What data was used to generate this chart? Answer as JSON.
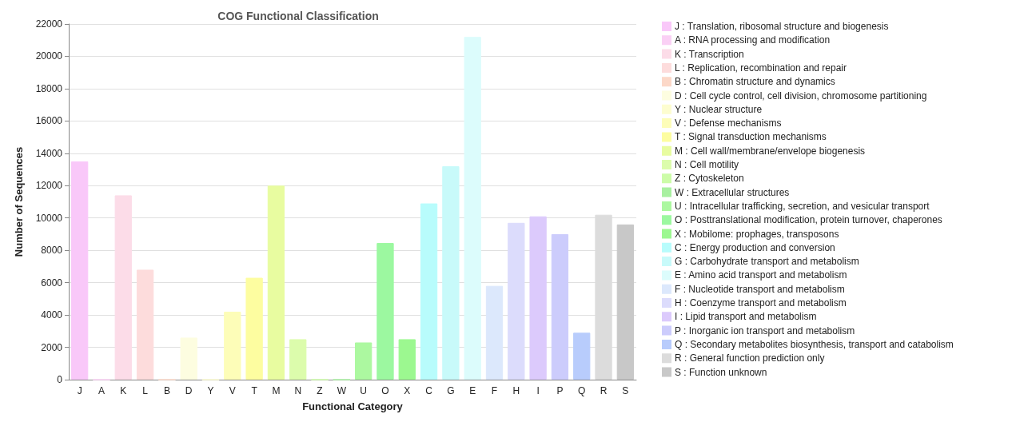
{
  "chart_data": {
    "type": "bar",
    "title": "COG Functional Classification",
    "xlabel": "Functional Category",
    "ylabel": "Number of Sequences",
    "categories": [
      "J",
      "A",
      "K",
      "L",
      "B",
      "D",
      "Y",
      "V",
      "T",
      "M",
      "N",
      "Z",
      "W",
      "U",
      "O",
      "X",
      "C",
      "G",
      "E",
      "F",
      "H",
      "I",
      "P",
      "Q",
      "R",
      "S"
    ],
    "series": [
      {
        "name": "J : Translation, ribosomal structure and biogenesis",
        "color": "#f9c8f9",
        "values": [
          13500,
          null,
          null,
          null,
          null,
          null,
          null,
          null,
          null,
          null,
          null,
          null,
          null,
          null,
          null,
          null,
          null,
          null,
          null,
          null,
          null,
          null,
          null,
          null,
          null,
          null
        ]
      },
      {
        "name": "A : RNA processing and modification",
        "color": "#fad0f5",
        "values": [
          null,
          0,
          null,
          null,
          null,
          null,
          null,
          null,
          null,
          null,
          null,
          null,
          null,
          null,
          null,
          null,
          null,
          null,
          null,
          null,
          null,
          null,
          null,
          null,
          null,
          null
        ]
      },
      {
        "name": "K : Transcription",
        "color": "#fcdce8",
        "values": [
          null,
          null,
          11400,
          null,
          null,
          null,
          null,
          null,
          null,
          null,
          null,
          null,
          null,
          null,
          null,
          null,
          null,
          null,
          null,
          null,
          null,
          null,
          null,
          null,
          null,
          null
        ]
      },
      {
        "name": "L : Replication, recombination and repair",
        "color": "#fddcdc",
        "values": [
          null,
          null,
          null,
          6800,
          null,
          null,
          null,
          null,
          null,
          null,
          null,
          null,
          null,
          null,
          null,
          null,
          null,
          null,
          null,
          null,
          null,
          null,
          null,
          null,
          null,
          null
        ]
      },
      {
        "name": "B : Chromatin structure and dynamics",
        "color": "#fcd8c8",
        "values": [
          null,
          null,
          null,
          null,
          0,
          null,
          null,
          null,
          null,
          null,
          null,
          null,
          null,
          null,
          null,
          null,
          null,
          null,
          null,
          null,
          null,
          null,
          null,
          null,
          null,
          null
        ]
      },
      {
        "name": "D : Cell cycle control, cell division, chromosome partitioning",
        "color": "#fdfde0",
        "values": [
          null,
          null,
          null,
          null,
          null,
          2600,
          null,
          null,
          null,
          null,
          null,
          null,
          null,
          null,
          null,
          null,
          null,
          null,
          null,
          null,
          null,
          null,
          null,
          null,
          null,
          null
        ]
      },
      {
        "name": "Y : Nuclear structure",
        "color": "#fdfdd0",
        "values": [
          null,
          null,
          null,
          null,
          null,
          null,
          0,
          null,
          null,
          null,
          null,
          null,
          null,
          null,
          null,
          null,
          null,
          null,
          null,
          null,
          null,
          null,
          null,
          null,
          null,
          null
        ]
      },
      {
        "name": "V : Defense mechanisms",
        "color": "#fdfdb8",
        "values": [
          null,
          null,
          null,
          null,
          null,
          null,
          null,
          4200,
          null,
          null,
          null,
          null,
          null,
          null,
          null,
          null,
          null,
          null,
          null,
          null,
          null,
          null,
          null,
          null,
          null,
          null
        ]
      },
      {
        "name": "T : Signal transduction mechanisms",
        "color": "#fdfda0",
        "values": [
          null,
          null,
          null,
          null,
          null,
          null,
          null,
          null,
          6300,
          null,
          null,
          null,
          null,
          null,
          null,
          null,
          null,
          null,
          null,
          null,
          null,
          null,
          null,
          null,
          null,
          null
        ]
      },
      {
        "name": "M : Cell wall/membrane/envelope biogenesis",
        "color": "#e8fca0",
        "values": [
          null,
          null,
          null,
          null,
          null,
          null,
          null,
          null,
          null,
          12000,
          null,
          null,
          null,
          null,
          null,
          null,
          null,
          null,
          null,
          null,
          null,
          null,
          null,
          null,
          null,
          null
        ]
      },
      {
        "name": "N : Cell motility",
        "color": "#dcfcac",
        "values": [
          null,
          null,
          null,
          null,
          null,
          null,
          null,
          null,
          null,
          null,
          2500,
          null,
          null,
          null,
          null,
          null,
          null,
          null,
          null,
          null,
          null,
          null,
          null,
          null,
          null,
          null
        ]
      },
      {
        "name": "Z : Cytoskeleton",
        "color": "#ccfca8",
        "values": [
          null,
          null,
          null,
          null,
          null,
          null,
          null,
          null,
          null,
          null,
          null,
          0,
          null,
          null,
          null,
          null,
          null,
          null,
          null,
          null,
          null,
          null,
          null,
          null,
          null,
          null
        ]
      },
      {
        "name": "W : Extracellular structures",
        "color": "#a8f0a0",
        "values": [
          null,
          null,
          null,
          null,
          null,
          null,
          null,
          null,
          null,
          null,
          null,
          null,
          0,
          null,
          null,
          null,
          null,
          null,
          null,
          null,
          null,
          null,
          null,
          null,
          null,
          null
        ]
      },
      {
        "name": "U : Intracellular trafficking, secretion, and vesicular transport",
        "color": "#acf8a0",
        "values": [
          null,
          null,
          null,
          null,
          null,
          null,
          null,
          null,
          null,
          null,
          null,
          null,
          null,
          2300,
          null,
          null,
          null,
          null,
          null,
          null,
          null,
          null,
          null,
          null,
          null,
          null
        ]
      },
      {
        "name": "O : Posttranslational modification, protein turnover, chaperones",
        "color": "#9cf8a0",
        "values": [
          null,
          null,
          null,
          null,
          null,
          null,
          null,
          null,
          null,
          null,
          null,
          null,
          null,
          null,
          8450,
          null,
          null,
          null,
          null,
          null,
          null,
          null,
          null,
          null,
          null,
          null
        ]
      },
      {
        "name": "X : Mobilome: prophages, transposons",
        "color": "#9cf890",
        "values": [
          null,
          null,
          null,
          null,
          null,
          null,
          null,
          null,
          null,
          null,
          null,
          null,
          null,
          null,
          null,
          2500,
          null,
          null,
          null,
          null,
          null,
          null,
          null,
          null,
          null,
          null
        ]
      },
      {
        "name": "C : Energy production and conversion",
        "color": "#b8fcfc",
        "values": [
          null,
          null,
          null,
          null,
          null,
          null,
          null,
          null,
          null,
          null,
          null,
          null,
          null,
          null,
          null,
          null,
          10900,
          null,
          null,
          null,
          null,
          null,
          null,
          null,
          null,
          null
        ]
      },
      {
        "name": "G : Carbohydrate transport and metabolism",
        "color": "#c8fafa",
        "values": [
          null,
          null,
          null,
          null,
          null,
          null,
          null,
          null,
          null,
          null,
          null,
          null,
          null,
          null,
          null,
          null,
          null,
          13200,
          null,
          null,
          null,
          null,
          null,
          null,
          null,
          null
        ]
      },
      {
        "name": "E : Amino acid transport and metabolism",
        "color": "#dcfcfc",
        "values": [
          null,
          null,
          null,
          null,
          null,
          null,
          null,
          null,
          null,
          null,
          null,
          null,
          null,
          null,
          null,
          null,
          null,
          null,
          21200,
          null,
          null,
          null,
          null,
          null,
          null,
          null
        ]
      },
      {
        "name": "F : Nucleotide transport and metabolism",
        "color": "#dce8fc",
        "values": [
          null,
          null,
          null,
          null,
          null,
          null,
          null,
          null,
          null,
          null,
          null,
          null,
          null,
          null,
          null,
          null,
          null,
          null,
          null,
          5800,
          null,
          null,
          null,
          null,
          null,
          null
        ]
      },
      {
        "name": "H : Coenzyme transport and metabolism",
        "color": "#dcdcfc",
        "values": [
          null,
          null,
          null,
          null,
          null,
          null,
          null,
          null,
          null,
          null,
          null,
          null,
          null,
          null,
          null,
          null,
          null,
          null,
          null,
          null,
          9700,
          null,
          null,
          null,
          null,
          null
        ]
      },
      {
        "name": "I : Lipid transport and metabolism",
        "color": "#dccafc",
        "values": [
          null,
          null,
          null,
          null,
          null,
          null,
          null,
          null,
          null,
          null,
          null,
          null,
          null,
          null,
          null,
          null,
          null,
          null,
          null,
          null,
          null,
          10100,
          null,
          null,
          null,
          null
        ]
      },
      {
        "name": "P : Inorganic ion transport and metabolism",
        "color": "#ccccfc",
        "values": [
          null,
          null,
          null,
          null,
          null,
          null,
          null,
          null,
          null,
          null,
          null,
          null,
          null,
          null,
          null,
          null,
          null,
          null,
          null,
          null,
          null,
          null,
          9000,
          null,
          null,
          null
        ]
      },
      {
        "name": "Q : Secondary metabolites biosynthesis, transport and catabolism",
        "color": "#b8ccfc",
        "values": [
          null,
          null,
          null,
          null,
          null,
          null,
          null,
          null,
          null,
          null,
          null,
          null,
          null,
          null,
          null,
          null,
          null,
          null,
          null,
          null,
          null,
          null,
          null,
          2900,
          null,
          null
        ]
      },
      {
        "name": "R : General function prediction only",
        "color": "#dcdcdc",
        "values": [
          null,
          null,
          null,
          null,
          null,
          null,
          null,
          null,
          null,
          null,
          null,
          null,
          null,
          null,
          null,
          null,
          null,
          null,
          null,
          null,
          null,
          null,
          null,
          null,
          10200,
          null
        ]
      },
      {
        "name": "S : Function unknown",
        "color": "#c8c8c8",
        "values": [
          null,
          null,
          null,
          null,
          null,
          null,
          null,
          null,
          null,
          null,
          null,
          null,
          null,
          null,
          null,
          null,
          null,
          null,
          null,
          null,
          null,
          null,
          null,
          null,
          null,
          9600
        ]
      }
    ],
    "ylim": [
      0,
      22000
    ],
    "yticks": [
      0,
      2000,
      4000,
      6000,
      8000,
      10000,
      12000,
      14000,
      16000,
      18000,
      20000,
      22000
    ],
    "grid": "y",
    "legend": "right"
  }
}
